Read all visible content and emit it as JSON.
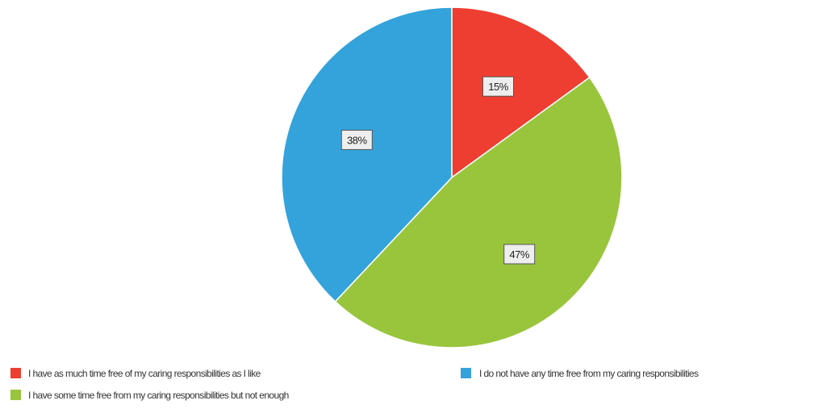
{
  "chart_data": {
    "type": "pie",
    "title": "",
    "slices": [
      {
        "label": "I have as much time free of my caring responsibilities as I like",
        "value": 15,
        "display": "15%",
        "color": "#ee3e32"
      },
      {
        "label": "I have some time free from my caring responsibilities but not enough",
        "value": 47,
        "display": "47%",
        "color": "#99c53d"
      },
      {
        "label": "I do not have any time free from my caring responsibilities",
        "value": 38,
        "display": "38%",
        "color": "#35a3db"
      }
    ],
    "legend": {
      "placement": "bottom",
      "entries": [
        "I have as much time free of my caring responsibilities as I like",
        "I do not have any time free from my caring responsibilities",
        "I have some time free from my caring responsibilities but not enough"
      ]
    }
  }
}
